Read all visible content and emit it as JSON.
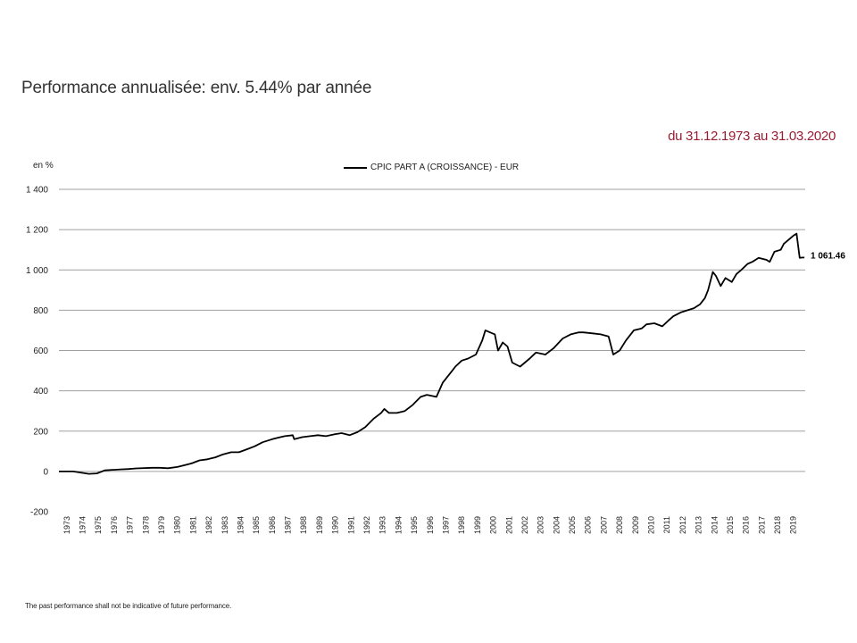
{
  "title": "Performance annualisée: env. 5.44% par année",
  "period": "du 31.12.1973 au 31.03.2020",
  "footnote": "The past performance shall not be indicative of future performance.",
  "colors": {
    "accent": "#9b1b30",
    "line": "#000000",
    "grid": "#a0a0a0"
  },
  "chart_data": {
    "type": "line",
    "ylabel": "en %",
    "legend": "CPIC PART A (CROISSANCE) - EUR",
    "ylim": [
      -200,
      1400
    ],
    "yticks": [
      1400,
      1200,
      1000,
      800,
      600,
      400,
      200,
      0,
      -200
    ],
    "ytick_labels": [
      "1 400",
      "1 200",
      "1 000",
      "800",
      "600",
      "400",
      "200",
      "0",
      "-200"
    ],
    "xlim": [
      1973.0,
      2020.25
    ],
    "xtick_labels": [
      "1973",
      "1974",
      "1975",
      "1976",
      "1977",
      "1978",
      "1979",
      "1980",
      "1981",
      "1982",
      "1983",
      "1984",
      "1985",
      "1986",
      "1987",
      "1988",
      "1989",
      "1990",
      "1991",
      "1992",
      "1993",
      "1994",
      "1995",
      "1996",
      "1997",
      "1998",
      "1999",
      "2000",
      "2001",
      "2002",
      "2003",
      "2004",
      "2005",
      "2006",
      "2007",
      "2008",
      "2009",
      "2010",
      "2011",
      "2012",
      "2013",
      "2014",
      "2015",
      "2016",
      "2017",
      "2018",
      "2019"
    ],
    "last_value_label": "1 061.46",
    "series": [
      {
        "name": "CPIC PART A (CROISSANCE) - EUR",
        "x": [
          1973.0,
          1973.9,
          1974.9,
          1975.4,
          1975.9,
          1976.9,
          1977.4,
          1977.9,
          1978.9,
          1979.4,
          1979.9,
          1980.5,
          1980.9,
          1981.4,
          1981.9,
          1982.4,
          1982.9,
          1983.4,
          1983.9,
          1984.4,
          1984.9,
          1985.4,
          1985.9,
          1986.5,
          1986.9,
          1987.3,
          1987.8,
          1987.9,
          1988.4,
          1988.9,
          1989.4,
          1989.9,
          1990.5,
          1990.9,
          1991.4,
          1991.9,
          1992.4,
          1992.9,
          1993.4,
          1993.6,
          1993.9,
          1994.4,
          1994.9,
          1995.4,
          1995.9,
          1996.3,
          1996.9,
          1997.3,
          1997.9,
          1998.1,
          1998.5,
          1998.9,
          1999.4,
          1999.8,
          2000.0,
          2000.3,
          2000.6,
          2000.8,
          2001.1,
          2001.4,
          2001.7,
          2002.2,
          2002.8,
          2003.2,
          2003.8,
          2004.3,
          2004.9,
          2005.4,
          2005.9,
          2006.2,
          2006.8,
          2007.3,
          2007.8,
          2008.1,
          2008.5,
          2008.9,
          2009.4,
          2009.9,
          2010.2,
          2010.7,
          2011.2,
          2011.6,
          2011.9,
          2012.4,
          2012.8,
          2013.2,
          2013.6,
          2013.9,
          2014.1,
          2014.4,
          2014.6,
          2014.9,
          2015.2,
          2015.6,
          2015.9,
          2016.2,
          2016.6,
          2016.9,
          2017.3,
          2017.8,
          2018.0,
          2018.3,
          2018.7,
          2018.9,
          2019.2,
          2019.5,
          2019.7,
          2019.9,
          2020.1,
          2020.2
        ],
        "values": [
          0,
          0,
          -12,
          -10,
          5,
          10,
          12,
          15,
          18,
          18,
          16,
          22,
          30,
          40,
          55,
          60,
          70,
          85,
          95,
          95,
          110,
          125,
          145,
          160,
          168,
          175,
          180,
          160,
          170,
          175,
          180,
          175,
          185,
          190,
          180,
          195,
          220,
          260,
          290,
          310,
          290,
          290,
          300,
          330,
          370,
          380,
          370,
          440,
          500,
          520,
          550,
          560,
          580,
          650,
          700,
          690,
          680,
          600,
          640,
          620,
          540,
          520,
          560,
          590,
          580,
          610,
          660,
          680,
          690,
          690,
          685,
          680,
          670,
          580,
          600,
          650,
          700,
          710,
          730,
          735,
          720,
          750,
          770,
          790,
          800,
          810,
          830,
          860,
          900,
          990,
          970,
          920,
          960,
          940,
          980,
          1000,
          1030,
          1040,
          1060,
          1050,
          1040,
          1090,
          1100,
          1130,
          1150,
          1170,
          1180,
          1060,
          1061.46,
          1061.46
        ]
      }
    ]
  }
}
